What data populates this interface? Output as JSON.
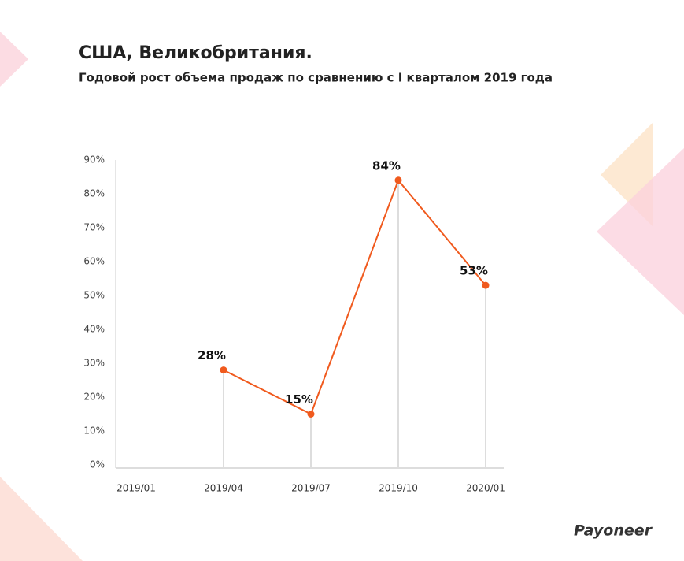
{
  "chart_data": {
    "type": "line",
    "title": "США, Великобритания.",
    "subtitle": "Годовой рост объема продаж по сравнению с I кварталом 2019 года",
    "categories": [
      "2019/01",
      "2019/04",
      "2019/07",
      "2019/10",
      "2020/01"
    ],
    "series": [
      {
        "name": null,
        "color": "#f05a1e",
        "values": [
          null,
          28,
          15,
          84,
          53
        ],
        "value_labels": [
          null,
          "28%",
          "15%",
          "84%",
          "53%"
        ]
      }
    ],
    "ylim": [
      0,
      90
    ],
    "yticks": [
      {
        "value": 0,
        "label": "0%"
      },
      {
        "value": 10,
        "label": "10%"
      },
      {
        "value": 20,
        "label": "20%"
      },
      {
        "value": 30,
        "label": "30%"
      },
      {
        "value": 40,
        "label": "40%"
      },
      {
        "value": 50,
        "label": "50%"
      },
      {
        "value": 60,
        "label": "60%"
      },
      {
        "value": 70,
        "label": "70%"
      },
      {
        "value": 80,
        "label": "80%"
      },
      {
        "value": 90,
        "label": "90%"
      }
    ]
  },
  "logo": "Payoneer"
}
